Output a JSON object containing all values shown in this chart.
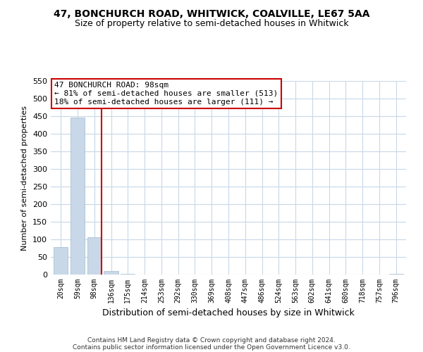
{
  "title": "47, BONCHURCH ROAD, WHITWICK, COALVILLE, LE67 5AA",
  "subtitle": "Size of property relative to semi-detached houses in Whitwick",
  "xlabel": "Distribution of semi-detached houses by size in Whitwick",
  "ylabel": "Number of semi-detached properties",
  "annotation_title": "47 BONCHURCH ROAD: 98sqm",
  "annotation_line1": "← 81% of semi-detached houses are smaller (513)",
  "annotation_line2": "18% of semi-detached houses are larger (111) →",
  "footer1": "Contains HM Land Registry data © Crown copyright and database right 2024.",
  "footer2": "Contains public sector information licensed under the Open Government Licence v3.0.",
  "bar_labels": [
    "20sqm",
    "59sqm",
    "98sqm",
    "136sqm",
    "175sqm",
    "214sqm",
    "253sqm",
    "292sqm",
    "330sqm",
    "369sqm",
    "408sqm",
    "447sqm",
    "486sqm",
    "524sqm",
    "563sqm",
    "602sqm",
    "641sqm",
    "680sqm",
    "718sqm",
    "757sqm",
    "796sqm"
  ],
  "bar_values": [
    78,
    447,
    106,
    10,
    2,
    0,
    0,
    0,
    0,
    0,
    0,
    0,
    0,
    0,
    0,
    0,
    0,
    0,
    0,
    0,
    2
  ],
  "bar_color": "#c8d8e8",
  "bar_edge_color": "#a0b8cc",
  "highlight_index": 2,
  "highlight_line_color": "#cc0000",
  "ylim": [
    0,
    550
  ],
  "yticks": [
    0,
    50,
    100,
    150,
    200,
    250,
    300,
    350,
    400,
    450,
    500,
    550
  ],
  "grid_color": "#c8d8e8",
  "annotation_box_color": "#ffffff",
  "annotation_box_edge": "#cc0000",
  "bg_color": "#ffffff",
  "title_fontsize": 10,
  "subtitle_fontsize": 9,
  "ylabel_fontsize": 8,
  "xlabel_fontsize": 9,
  "tick_fontsize": 7,
  "ytick_fontsize": 8,
  "footer_fontsize": 6.5,
  "annot_fontsize": 8
}
